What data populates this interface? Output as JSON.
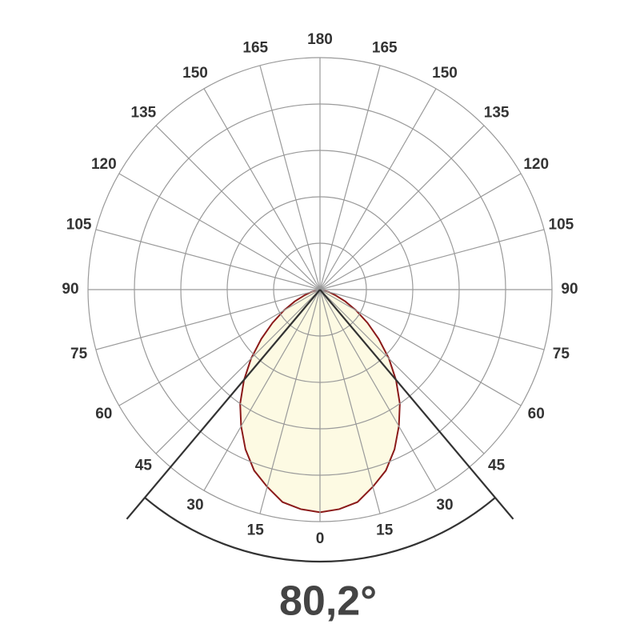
{
  "chart_data": {
    "type": "polar",
    "angle_ticks": [
      0,
      15,
      30,
      45,
      60,
      75,
      90,
      105,
      120,
      135,
      150,
      165,
      180
    ],
    "angles": [
      0,
      5,
      10,
      15,
      20,
      25,
      30,
      35,
      40,
      45,
      50,
      55,
      60,
      65,
      70,
      75,
      80,
      85,
      90
    ],
    "values": [
      0.96,
      0.95,
      0.93,
      0.88,
      0.83,
      0.76,
      0.68,
      0.6,
      0.51,
      0.42,
      0.33,
      0.25,
      0.18,
      0.12,
      0.07,
      0.04,
      0.01,
      0,
      0
    ],
    "rlim": [
      0,
      1
    ],
    "rings": [
      0.2,
      0.4,
      0.6,
      0.8,
      1
    ],
    "color": "#8b1a1a",
    "fill": "#fdfae3",
    "beam_angle": {
      "value": 80.2,
      "label": "80,2°"
    }
  }
}
